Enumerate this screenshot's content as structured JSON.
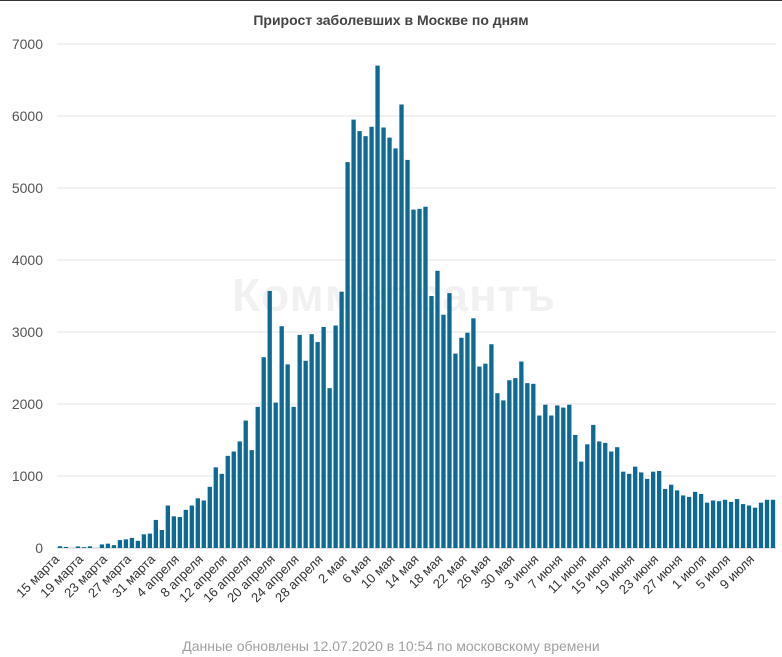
{
  "chart_data": {
    "type": "bar",
    "title": "Прирост заболевших в Москве по дням",
    "xlabel": "",
    "ylabel": "",
    "ylim": [
      0,
      7000
    ],
    "y_ticks": [
      0,
      1000,
      2000,
      3000,
      4000,
      5000,
      6000,
      7000
    ],
    "grid": true,
    "bar_color": "#0d6a94",
    "x_tick_labels": [
      "15 марта",
      "19 марта",
      "23 марта",
      "27 марта",
      "31 марта",
      "4 апреля",
      "8 апреля",
      "12 апреля",
      "16 апреля",
      "20 апреля",
      "24 апреля",
      "28 апреля",
      "2 мая",
      "6 мая",
      "10 мая",
      "14 мая",
      "18 мая",
      "22 мая",
      "26 мая",
      "30 мая",
      "3 июня",
      "7 июня",
      "11 июня",
      "15 июня",
      "19 июня",
      "23 июня",
      "27 июня",
      "1 июля",
      "5 июля",
      "9 июля"
    ],
    "x_tick_every": 4,
    "start_label": "15 марта",
    "end_label": "12 июля",
    "values": [
      25,
      15,
      0,
      22,
      12,
      24,
      0,
      50,
      60,
      40,
      110,
      120,
      140,
      100,
      190,
      200,
      390,
      250,
      590,
      440,
      430,
      530,
      590,
      690,
      660,
      850,
      1120,
      1030,
      1280,
      1340,
      1480,
      1770,
      1360,
      1960,
      2650,
      3570,
      2020,
      3080,
      2550,
      1960,
      2960,
      2600,
      2970,
      2860,
      3070,
      2220,
      3090,
      3560,
      5360,
      5950,
      5790,
      5720,
      5850,
      6700,
      5840,
      5700,
      5550,
      6160,
      5390,
      4700,
      4710,
      4740,
      3500,
      3850,
      3240,
      3540,
      2700,
      2920,
      2990,
      3190,
      2520,
      2560,
      2830,
      2150,
      2050,
      2330,
      2360,
      2590,
      2290,
      2280,
      1840,
      1990,
      1840,
      1980,
      1950,
      1990,
      1570,
      1200,
      1440,
      1710,
      1480,
      1460,
      1340,
      1400,
      1060,
      1030,
      1130,
      1050,
      960,
      1060,
      1070,
      820,
      880,
      800,
      730,
      710,
      780,
      750,
      630,
      660,
      650,
      670,
      640,
      680,
      610,
      590,
      560,
      630,
      670,
      670
    ]
  },
  "footer": {
    "text": "Данные обновлены 12.07.2020 в 10:54 по московскому времени"
  },
  "watermark": {
    "text": "Коммерсантъ"
  }
}
